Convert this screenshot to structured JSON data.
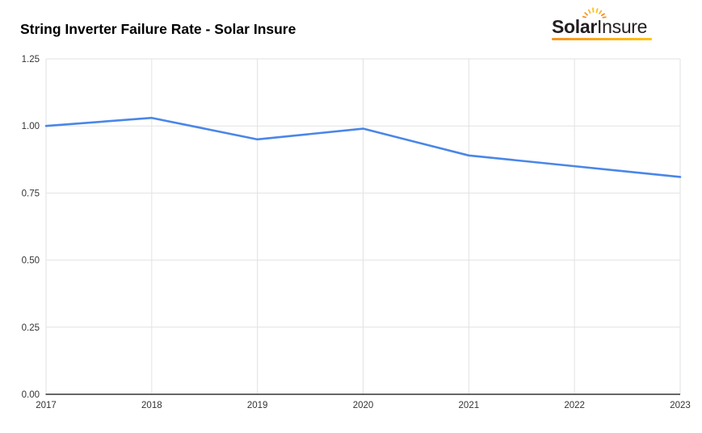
{
  "page": {
    "background_color": "#ffffff"
  },
  "header": {
    "title": "String Inverter Failure Rate - Solar Insure"
  },
  "logo": {
    "text_bold": "Solar",
    "text_light": "Insure",
    "text_color": "#231f20",
    "sun_icon_colors": [
      "#f7941d",
      "#ffc20e"
    ],
    "underline_colors": [
      "#f7941d",
      "#ffc20e"
    ]
  },
  "chart_data": {
    "type": "line",
    "title": "String Inverter Failure Rate - Solar Insure",
    "categories": [
      "2017",
      "2018",
      "2019",
      "2020",
      "2021",
      "2022",
      "2023"
    ],
    "series": [
      {
        "name": "String Inverter Failure Rate",
        "values": [
          1.0,
          1.03,
          0.95,
          0.99,
          0.89,
          0.85,
          0.81
        ]
      }
    ],
    "xlabel": "",
    "ylabel": "",
    "ylim": [
      0,
      1.25
    ],
    "yticks": [
      0,
      0.25,
      0.5,
      0.75,
      1,
      1.25
    ],
    "ytick_labels": [
      "0.00",
      "0.25",
      "0.50",
      "0.75",
      "1.00",
      "1.25"
    ],
    "grid": true,
    "legend_position": "none",
    "line_color": "#4a86e8",
    "grid_color": "#e2e2e2",
    "axis_color": "#333333",
    "label_color": "#333333"
  }
}
